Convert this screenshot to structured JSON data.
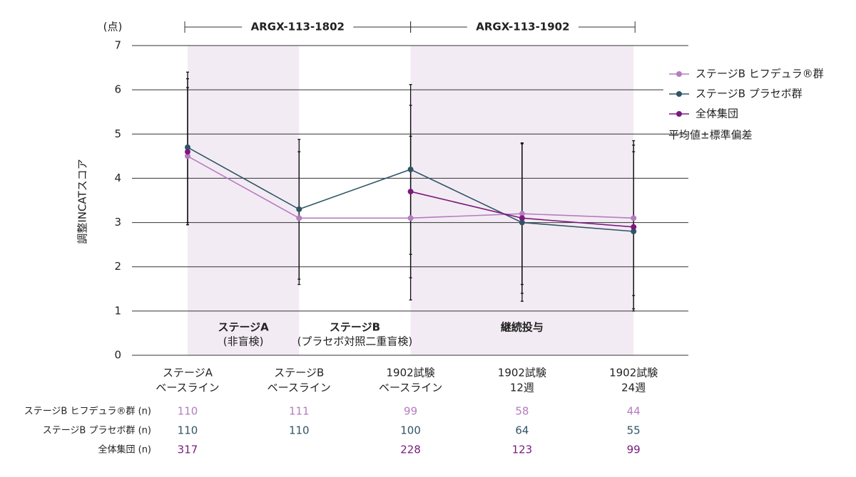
{
  "chart_data": {
    "type": "line",
    "unit_label": "(点)",
    "y_label": "調整INCATスコア",
    "categories": [
      [
        "ステージA",
        "ベースライン"
      ],
      [
        "ステージB",
        "ベースライン"
      ],
      [
        "1902試験",
        "ベースライン"
      ],
      [
        "1902試験",
        "12週"
      ],
      [
        "1902試験",
        "24週"
      ]
    ],
    "ylim": [
      0,
      7
    ],
    "yticks": [
      0,
      1,
      2,
      3,
      4,
      5,
      6,
      7
    ],
    "grid": true,
    "series": [
      {
        "name": "ステージB ヒフデュラ®群",
        "color": "#b57dbf",
        "values": [
          4.5,
          3.1,
          3.1,
          3.2,
          3.1
        ],
        "errors": [
          1.55,
          1.5,
          1.85,
          1.6,
          1.75
        ]
      },
      {
        "name": "ステージB プラセボ群",
        "color": "#2f5565",
        "values": [
          4.7,
          3.3,
          4.2,
          3.0,
          2.8
        ],
        "errors": [
          1.7,
          1.58,
          1.92,
          1.78,
          1.8
        ]
      },
      {
        "name": "全体集団",
        "color": "#7a1a7d",
        "values": [
          4.6,
          null,
          3.7,
          3.1,
          2.9
        ],
        "errors": [
          1.65,
          null,
          1.95,
          1.7,
          1.85
        ]
      }
    ],
    "error_legend": "平均値±標準偏差",
    "studies": [
      {
        "label": "ARGX-113-1802",
        "from": 0,
        "to": 2
      },
      {
        "label": "ARGX-113-1902",
        "from": 2,
        "to": 4
      }
    ],
    "phases": [
      {
        "title": "ステージA",
        "subtitle": "(非盲検)",
        "from": 0,
        "to": 1,
        "shaded": true
      },
      {
        "title": "ステージB",
        "subtitle": "(プラセボ対照二重盲検)",
        "from": 1,
        "to": 2,
        "shaded": false
      },
      {
        "title": "継続投与",
        "from": 2,
        "to": 4,
        "shaded": true
      }
    ],
    "n_table": [
      {
        "label": "ステージB ヒフデュラ®群 (n)",
        "values": [
          110,
          111,
          99,
          58,
          44
        ]
      },
      {
        "label": "ステージB プラセボ群 (n)",
        "values": [
          110,
          110,
          100,
          64,
          55
        ]
      },
      {
        "label": "全体集団 (n)",
        "values": [
          317,
          null,
          228,
          123,
          99
        ]
      }
    ]
  }
}
